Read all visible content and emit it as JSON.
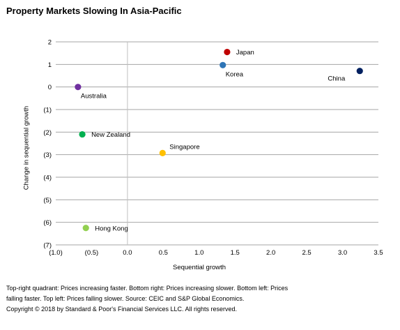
{
  "chart_data": {
    "type": "scatter",
    "title": "Property Markets Slowing In Asia-Pacific",
    "xlabel": "Sequential growth",
    "ylabel": "Change in sequential growth",
    "xlim": [
      -1.0,
      3.5
    ],
    "ylim": [
      -7,
      2
    ],
    "x_ticks": [
      -1.0,
      -0.5,
      0.0,
      0.5,
      1.0,
      1.5,
      2.0,
      2.5,
      3.0,
      3.5
    ],
    "x_tick_labels": [
      "(1.0)",
      "(0.5)",
      "0.0",
      "0.5",
      "1.0",
      "1.5",
      "2.0",
      "2.5",
      "3.0",
      "3.5"
    ],
    "y_ticks": [
      2,
      1,
      0,
      -1,
      -2,
      -3,
      -4,
      -5,
      -6,
      -7
    ],
    "y_tick_labels": [
      "2",
      "1",
      "0",
      "(1)",
      "(2)",
      "(3)",
      "(4)",
      "(5)",
      "(6)",
      "(7)"
    ],
    "grid": "horizontal",
    "points": [
      {
        "label": "Japan",
        "x": 1.39,
        "y": 1.55,
        "color": "#c00000",
        "label_side": "right"
      },
      {
        "label": "Korea",
        "x": 1.33,
        "y": 0.97,
        "color": "#2e75b6",
        "label_side": "below"
      },
      {
        "label": "China",
        "x": 3.24,
        "y": 0.71,
        "color": "#002060",
        "label_side": "below-left"
      },
      {
        "label": "Australia",
        "x": -0.69,
        "y": 0.0,
        "color": "#7030a0",
        "label_side": "below"
      },
      {
        "label": "New Zealand",
        "x": -0.63,
        "y": -2.1,
        "color": "#00b050",
        "label_side": "right"
      },
      {
        "label": "Singapore",
        "x": 0.49,
        "y": -2.93,
        "color": "#ffc000",
        "label_side": "above-right"
      },
      {
        "label": "Hong Kong",
        "x": -0.58,
        "y": -6.25,
        "color": "#92d050",
        "label_side": "right"
      }
    ]
  },
  "footnote": {
    "line1": "Top-right quadrant: Prices increasing faster. Bottom right: Prices increasing slower. Bottom left: Prices",
    "line2": "falling faster. Top left: Prices falling slower.  Source: CEIC and S&P Global Economics.",
    "line3": "Copyright © 2018 by Standard & Poor's Financial Services LLC. All rights reserved."
  }
}
